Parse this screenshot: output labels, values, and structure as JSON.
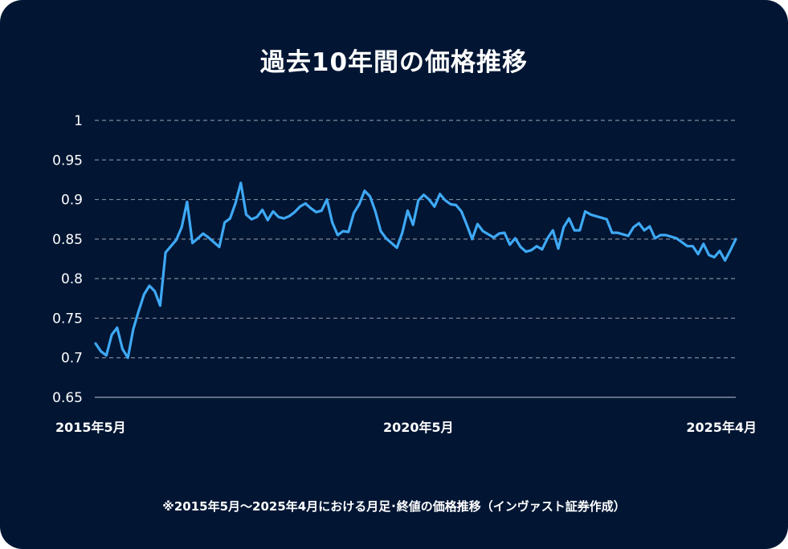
{
  "chart_data": {
    "type": "line",
    "title": "過去10年間の価格推移",
    "xlabel": "",
    "ylabel": "",
    "ylim": [
      0.65,
      1
    ],
    "yticks": [
      "1",
      "0.95",
      "0.9",
      "0.85",
      "0.8",
      "0.75",
      "0.7",
      "0.65"
    ],
    "ytick_values": [
      1,
      0.95,
      0.9,
      0.85,
      0.8,
      0.75,
      0.7,
      0.65
    ],
    "xtick_labels": [
      "2015年5月",
      "2020年5月",
      "2025年4月"
    ],
    "xtick_positions": [
      "2015-05",
      "2020-05",
      "2025-04"
    ],
    "grid": "horizontal dashed",
    "line_color": "#3fa9f5",
    "background_color": "#021634",
    "x": [
      "2015-05",
      "2015-06",
      "2015-07",
      "2015-08",
      "2015-09",
      "2015-10",
      "2015-11",
      "2015-12",
      "2016-01",
      "2016-02",
      "2016-03",
      "2016-04",
      "2016-05",
      "2016-06",
      "2016-07",
      "2016-08",
      "2016-09",
      "2016-10",
      "2016-11",
      "2016-12",
      "2017-01",
      "2017-02",
      "2017-03",
      "2017-04",
      "2017-05",
      "2017-06",
      "2017-07",
      "2017-08",
      "2017-09",
      "2017-10",
      "2017-11",
      "2017-12",
      "2018-01",
      "2018-02",
      "2018-03",
      "2018-04",
      "2018-05",
      "2018-06",
      "2018-07",
      "2018-08",
      "2018-09",
      "2018-10",
      "2018-11",
      "2018-12",
      "2019-01",
      "2019-02",
      "2019-03",
      "2019-04",
      "2019-05",
      "2019-06",
      "2019-07",
      "2019-08",
      "2019-09",
      "2019-10",
      "2019-11",
      "2019-12",
      "2020-01",
      "2020-02",
      "2020-03",
      "2020-04",
      "2020-05",
      "2020-06",
      "2020-07",
      "2020-08",
      "2020-09",
      "2020-10",
      "2020-11",
      "2020-12",
      "2021-01",
      "2021-02",
      "2021-03",
      "2021-04",
      "2021-05",
      "2021-06",
      "2021-07",
      "2021-08",
      "2021-09",
      "2021-10",
      "2021-11",
      "2021-12",
      "2022-01",
      "2022-02",
      "2022-03",
      "2022-04",
      "2022-05",
      "2022-06",
      "2022-07",
      "2022-08",
      "2022-09",
      "2022-10",
      "2022-11",
      "2022-12",
      "2023-01",
      "2023-02",
      "2023-03",
      "2023-04",
      "2023-05",
      "2023-06",
      "2023-07",
      "2023-08",
      "2023-09",
      "2023-10",
      "2023-11",
      "2023-12",
      "2024-01",
      "2024-02",
      "2024-03",
      "2024-04",
      "2024-05",
      "2024-06",
      "2024-07",
      "2024-08",
      "2024-09",
      "2024-10",
      "2024-11",
      "2024-12",
      "2025-01",
      "2025-02",
      "2025-03",
      "2025-04"
    ],
    "values": [
      0.718,
      0.708,
      0.703,
      0.729,
      0.738,
      0.711,
      0.7,
      0.736,
      0.759,
      0.78,
      0.791,
      0.784,
      0.766,
      0.833,
      0.841,
      0.849,
      0.865,
      0.897,
      0.845,
      0.851,
      0.857,
      0.852,
      0.846,
      0.84,
      0.871,
      0.876,
      0.895,
      0.921,
      0.881,
      0.875,
      0.878,
      0.887,
      0.874,
      0.885,
      0.878,
      0.876,
      0.879,
      0.884,
      0.891,
      0.895,
      0.889,
      0.884,
      0.886,
      0.9,
      0.871,
      0.855,
      0.86,
      0.859,
      0.883,
      0.894,
      0.911,
      0.904,
      0.885,
      0.86,
      0.851,
      0.845,
      0.839,
      0.858,
      0.886,
      0.868,
      0.899,
      0.906,
      0.9,
      0.891,
      0.907,
      0.899,
      0.894,
      0.893,
      0.885,
      0.868,
      0.85,
      0.869,
      0.86,
      0.856,
      0.852,
      0.857,
      0.858,
      0.843,
      0.851,
      0.84,
      0.834,
      0.836,
      0.841,
      0.837,
      0.851,
      0.861,
      0.838,
      0.865,
      0.876,
      0.861,
      0.861,
      0.885,
      0.881,
      0.879,
      0.877,
      0.875,
      0.858,
      0.858,
      0.856,
      0.854,
      0.865,
      0.87,
      0.861,
      0.866,
      0.851,
      0.855,
      0.855,
      0.853,
      0.851,
      0.846,
      0.841,
      0.841,
      0.831,
      0.844,
      0.83,
      0.827,
      0.835,
      0.823,
      0.836,
      0.85
    ]
  },
  "footnote": "※2015年5月～2025年4月における月足･終値の価格推移（インヴァスト証券作成）"
}
